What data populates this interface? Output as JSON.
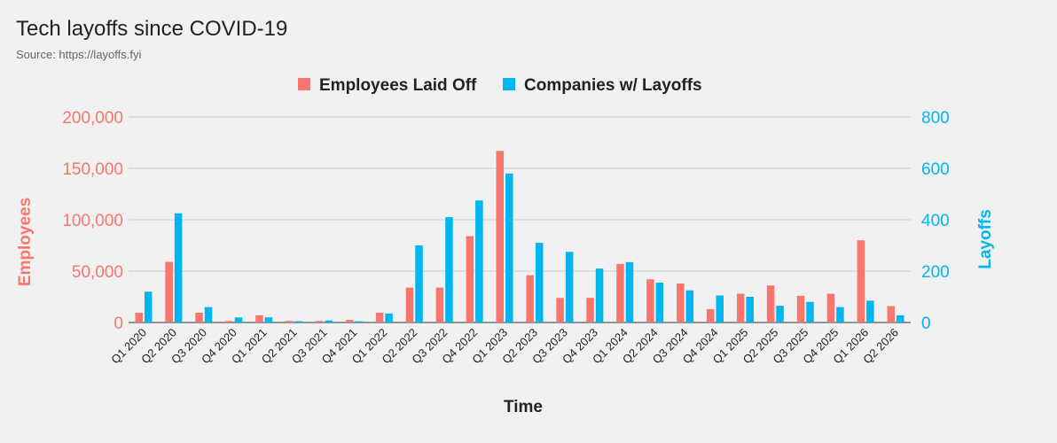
{
  "chart_data": {
    "type": "bar",
    "title": "Tech layoffs since COVID-19",
    "subtitle": "Source: https://layoffs.fyi",
    "xlabel": "Time",
    "ylabel_left": "Employees",
    "ylabel_right": "Layoffs",
    "ylim_left": [
      0,
      200000
    ],
    "ylim_right": [
      0,
      800
    ],
    "yticks_left": [
      "0",
      "50,000",
      "100,000",
      "150,000",
      "200,000"
    ],
    "yticks_right": [
      "0",
      "200",
      "400",
      "600",
      "800"
    ],
    "grid": true,
    "legend_position": "top-center",
    "categories": [
      "Q1 2020",
      "Q2 2020",
      "Q3 2020",
      "Q4 2020",
      "Q1 2021",
      "Q2 2021",
      "Q3 2021",
      "Q4 2021",
      "Q1 2022",
      "Q2 2022",
      "Q3 2022",
      "Q4 2022",
      "Q1 2023",
      "Q2 2023",
      "Q3 2023",
      "Q4 2023",
      "Q1 2024",
      "Q2 2024",
      "Q3 2024",
      "Q4 2024",
      "Q1 2025",
      "Q2 2025",
      "Q3 2025",
      "Q4 2025",
      "Q1 2026",
      "Q2 2026"
    ],
    "series": [
      {
        "name": "Employees Laid Off",
        "axis": "left",
        "color": "#f8766d",
        "values": [
          9500,
          59000,
          9500,
          1500,
          7000,
          1500,
          1500,
          2500,
          9500,
          34000,
          34000,
          84000,
          167000,
          46000,
          24000,
          24000,
          57000,
          42000,
          38000,
          13000,
          28000,
          36000,
          26000,
          28000,
          80000,
          16000
        ]
      },
      {
        "name": "Companies w/ Layoffs",
        "axis": "right",
        "color": "#00b6f1",
        "values": [
          120,
          425,
          60,
          20,
          20,
          5,
          8,
          5,
          35,
          300,
          410,
          475,
          580,
          310,
          275,
          210,
          235,
          155,
          125,
          105,
          100,
          65,
          80,
          60,
          85,
          28
        ]
      }
    ]
  }
}
